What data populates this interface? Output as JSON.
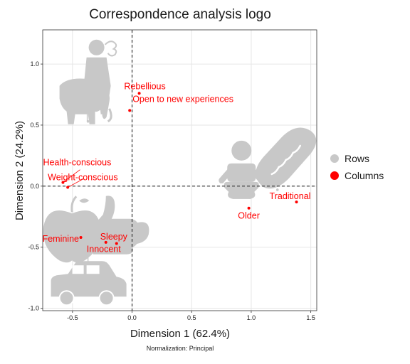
{
  "chart_data": {
    "type": "scatter",
    "title": "Correspondence analysis logo",
    "xlabel": "Dimension 1 (62.4%)",
    "ylabel": "Dimension 2 (24.2%)",
    "caption": "Normalization: Principal",
    "xlim": [
      -0.75,
      1.55
    ],
    "ylim": [
      -1.02,
      1.28
    ],
    "x_ticks": [
      -0.5,
      0.0,
      0.5,
      1.0,
      1.5
    ],
    "x_tick_labels": [
      "-0.5",
      "0.0",
      "0.5",
      "1.0",
      "1.5"
    ],
    "y_ticks": [
      -1.0,
      -0.5,
      0.0,
      0.5,
      1.0
    ],
    "y_tick_labels": [
      "-1.0",
      "-0.5",
      "0.0",
      "0.5",
      "1.0"
    ],
    "grid": true,
    "legend_position": "right",
    "series": [
      {
        "name": "Rows",
        "color": "#c8c8c8",
        "points": [
          {
            "icon": "person-with-elephant-icon",
            "x": -0.37,
            "y": 0.53
          },
          {
            "icon": "apples-icon",
            "x": -0.42,
            "y": -0.55
          },
          {
            "icon": "thumbs-up-icon",
            "x": -0.1,
            "y": -0.5
          },
          {
            "icon": "car-icon",
            "x": -0.37,
            "y": -0.8
          },
          {
            "icon": "baby-icon",
            "x": 0.99,
            "y": -0.07
          },
          {
            "icon": "bread-icon",
            "x": 1.22,
            "y": -0.03
          }
        ]
      },
      {
        "name": "Columns",
        "color": "#ff0000",
        "points": [
          {
            "label": "Rebellious",
            "x": 0.06,
            "y": 0.76
          },
          {
            "label": "Open to new experiences",
            "x": -0.02,
            "y": 0.62
          },
          {
            "label": "Health-conscious",
            "x": -0.58,
            "y": 0.03
          },
          {
            "label": "Weight-conscious",
            "x": -0.54,
            "y": -0.01
          },
          {
            "label": "Traditional",
            "x": 1.38,
            "y": -0.13
          },
          {
            "label": "Older",
            "x": 0.98,
            "y": -0.18
          },
          {
            "label": "Feminine",
            "x": -0.43,
            "y": -0.42
          },
          {
            "label": "Sleepy",
            "x": -0.22,
            "y": -0.46
          },
          {
            "label": "Innocent",
            "x": -0.13,
            "y": -0.47
          }
        ]
      }
    ]
  }
}
